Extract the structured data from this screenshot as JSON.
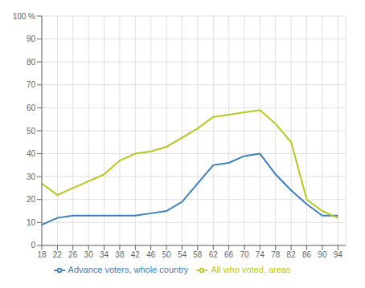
{
  "chart_data": {
    "type": "line",
    "x": [
      18,
      22,
      26,
      30,
      34,
      38,
      42,
      46,
      50,
      54,
      58,
      62,
      66,
      70,
      74,
      78,
      82,
      86,
      90,
      94
    ],
    "series": [
      {
        "name": "Advance voters, whole country",
        "color": "#3b7ec0",
        "values": [
          9,
          12,
          13,
          13,
          13,
          13,
          13,
          14,
          15,
          19,
          27,
          35,
          36,
          39,
          40,
          31,
          24,
          18,
          13,
          13
        ]
      },
      {
        "name": "All who voted, areas",
        "color": "#b8c820",
        "values": [
          27,
          22,
          25,
          28,
          31,
          37,
          40,
          41,
          43,
          47,
          51,
          56,
          57,
          58,
          59,
          53,
          45,
          20,
          15,
          12
        ]
      }
    ],
    "xlim": [
      18,
      96
    ],
    "xticks": [
      18,
      22,
      26,
      30,
      34,
      38,
      42,
      46,
      50,
      54,
      58,
      62,
      66,
      70,
      74,
      78,
      82,
      86,
      90,
      94
    ],
    "ylim": [
      0,
      100
    ],
    "yticks": [
      0,
      10,
      20,
      30,
      40,
      50,
      60,
      70,
      80,
      90,
      {
        "value": 100,
        "label": "100 %"
      }
    ],
    "grid": true,
    "legend": "bottom"
  }
}
